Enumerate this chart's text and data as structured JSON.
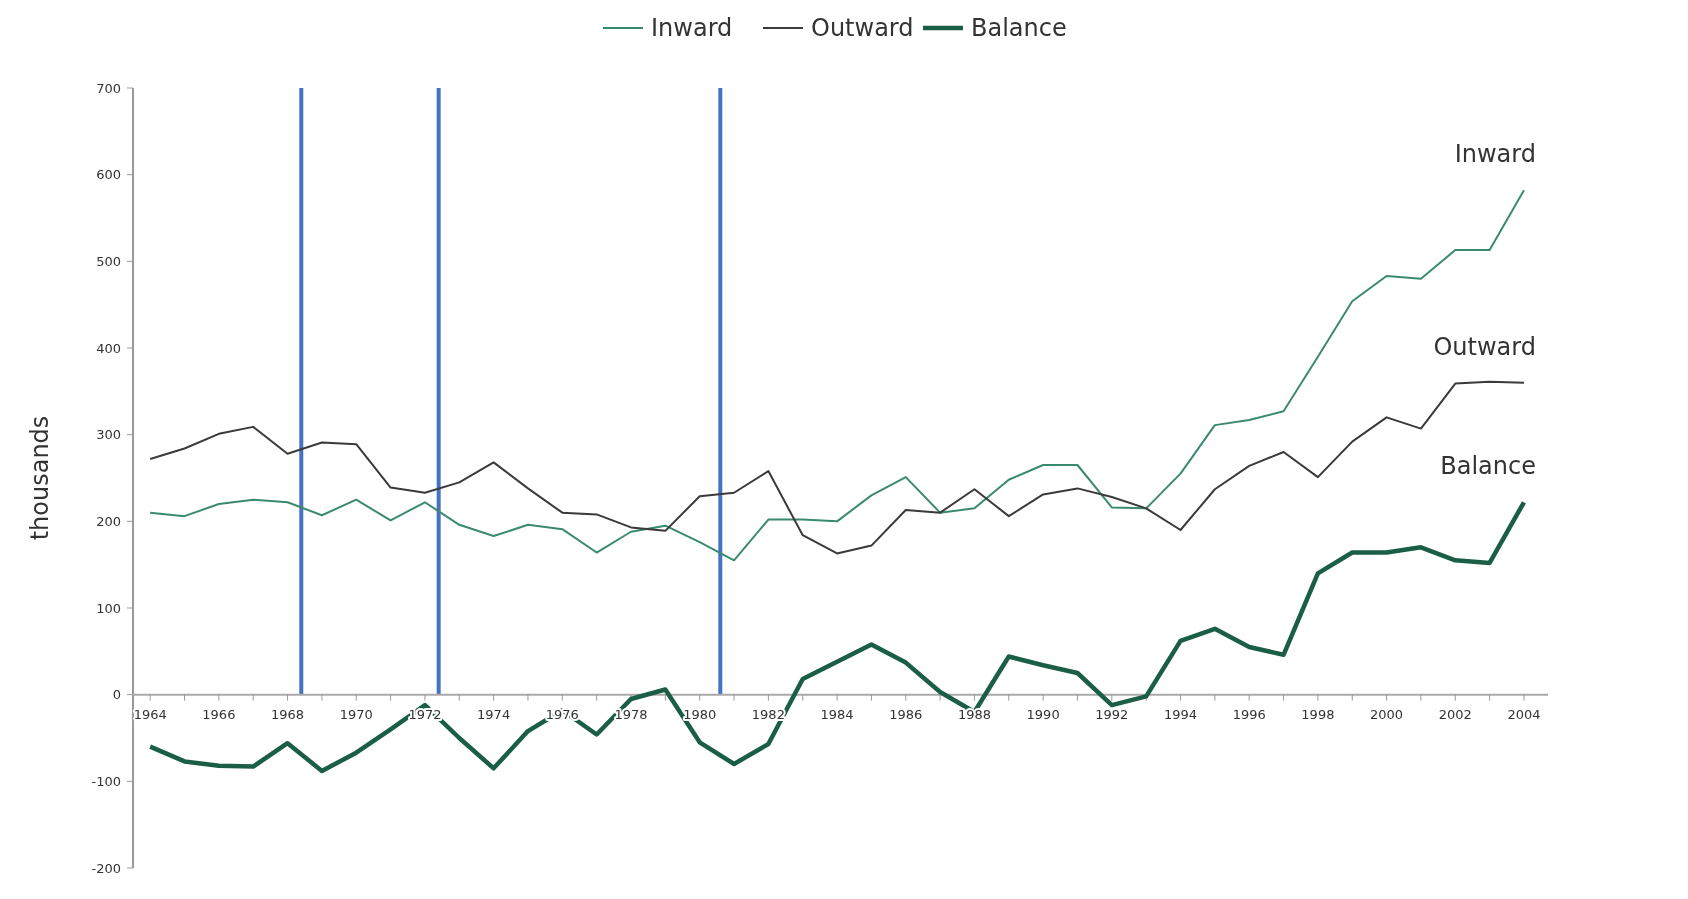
{
  "chart_data": {
    "type": "line",
    "ylabel": "thousands",
    "x": [
      1964,
      1965,
      1966,
      1967,
      1968,
      1969,
      1970,
      1971,
      1972,
      1973,
      1974,
      1975,
      1976,
      1977,
      1978,
      1979,
      1980,
      1981,
      1982,
      1983,
      1984,
      1985,
      1986,
      1987,
      1988,
      1989,
      1990,
      1991,
      1992,
      1993,
      1994,
      1995,
      1996,
      1997,
      1998,
      1999,
      2000,
      2001,
      2002,
      2003,
      2004
    ],
    "series": [
      {
        "name": "Inward",
        "color": "#3a8a6e",
        "values": [
          210,
          206,
          220,
          225,
          222,
          207,
          225,
          201,
          222,
          196,
          183,
          196,
          191,
          164,
          188,
          195,
          176,
          155,
          202,
          202,
          200,
          230,
          251,
          210,
          215,
          248,
          265,
          265,
          216,
          215,
          255,
          311,
          317,
          327,
          390,
          454,
          483,
          480,
          513,
          513,
          582
        ]
      },
      {
        "name": "Outward",
        "color": "#3a3a3a",
        "values": [
          272,
          284,
          301,
          309,
          278,
          291,
          289,
          239,
          233,
          245,
          268,
          238,
          210,
          208,
          193,
          189,
          229,
          233,
          258,
          184,
          163,
          172,
          213,
          210,
          237,
          206,
          231,
          238,
          228,
          215,
          190,
          237,
          264,
          280,
          251,
          292,
          320,
          307,
          359,
          361,
          360
        ]
      },
      {
        "name": "Balance",
        "color": "#1a5e45",
        "line_style": "solid",
        "values": [
          -60,
          -77,
          -82,
          -83,
          -56,
          -88,
          -67,
          -40,
          -12,
          -50,
          -85,
          -42,
          -18,
          -46,
          -5,
          6,
          -55,
          -80,
          -57,
          18,
          38,
          58,
          37,
          3,
          -20,
          44,
          34,
          25,
          -12,
          -2,
          62,
          76,
          55,
          46,
          140,
          164,
          164,
          170,
          155,
          152,
          222
        ]
      }
    ],
    "xlim": [
      1963.5,
      2004.7
    ],
    "xticks": [
      1964,
      {
        "value": 1965,
        "label": null
      },
      1966,
      {
        "value": 1967,
        "label": null
      },
      1968,
      {
        "value": 1969,
        "label": null
      },
      1970,
      {
        "value": 1971,
        "label": null
      },
      1972,
      {
        "value": 1973,
        "label": null
      },
      1974,
      {
        "value": 1975,
        "label": null
      },
      1976,
      {
        "value": 1977,
        "label": null
      },
      1978,
      {
        "value": 1979,
        "label": null
      },
      1980,
      {
        "value": 1981,
        "label": null
      },
      1982,
      {
        "value": 1983,
        "label": null
      },
      1984,
      {
        "value": 1985,
        "label": null
      },
      1986,
      {
        "value": 1987,
        "label": null
      },
      1988,
      {
        "value": 1989,
        "label": null
      },
      1990,
      {
        "value": 1991,
        "label": null
      },
      1992,
      {
        "value": 1993,
        "label": null
      },
      1994,
      {
        "value": 1995,
        "label": null
      },
      1996,
      {
        "value": 1997,
        "label": null
      },
      1998,
      {
        "value": 1999,
        "label": null
      },
      2000,
      {
        "value": 2001,
        "label": null
      },
      2002,
      {
        "value": 2003,
        "label": null
      },
      2004
    ],
    "ylim": [
      -200,
      700
    ],
    "yticks": [
      -200,
      -100,
      0,
      100,
      200,
      300,
      400,
      500,
      600,
      700
    ],
    "ref_lines": [
      {
        "axis": "x",
        "value": 1968.4,
        "color": "#4472c4"
      },
      {
        "axis": "x",
        "value": 1972.4,
        "color": "#4472c4"
      },
      {
        "axis": "x",
        "value": 1980.6,
        "color": "#4472c4"
      }
    ],
    "legend": "top",
    "grid": false
  }
}
